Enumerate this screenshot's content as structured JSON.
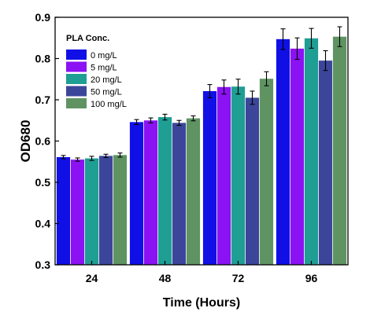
{
  "chart_data": {
    "type": "bar",
    "xlabel": "Time (Hours)",
    "ylabel": "OD680",
    "ylim": [
      0.3,
      0.9
    ],
    "yticks": [
      "0.3",
      "0.4",
      "0.5",
      "0.6",
      "0.7",
      "0.8",
      "0.9"
    ],
    "categories": [
      "24",
      "48",
      "72",
      "96"
    ],
    "legend_title": "PLA Conc.",
    "legend_position": "top-left",
    "grid": false,
    "series": [
      {
        "name": "0 mg/L",
        "color": "#1010e6",
        "values": [
          0.561,
          0.646,
          0.721,
          0.847
        ],
        "errors": [
          0.004,
          0.006,
          0.016,
          0.025
        ]
      },
      {
        "name": "5 mg/L",
        "color": "#8b12f2",
        "values": [
          0.555,
          0.65,
          0.731,
          0.824
        ],
        "errors": [
          0.004,
          0.006,
          0.017,
          0.026
        ]
      },
      {
        "name": "20 mg/L",
        "color": "#1f9e94",
        "values": [
          0.558,
          0.658,
          0.732,
          0.849
        ],
        "errors": [
          0.005,
          0.007,
          0.018,
          0.024
        ]
      },
      {
        "name": "50 mg/L",
        "color": "#3b469a",
        "values": [
          0.564,
          0.644,
          0.705,
          0.795
        ],
        "errors": [
          0.004,
          0.006,
          0.016,
          0.024
        ]
      },
      {
        "name": "100 mg/L",
        "color": "#5f9462",
        "values": [
          0.566,
          0.655,
          0.751,
          0.853
        ],
        "errors": [
          0.005,
          0.006,
          0.017,
          0.024
        ]
      }
    ]
  }
}
